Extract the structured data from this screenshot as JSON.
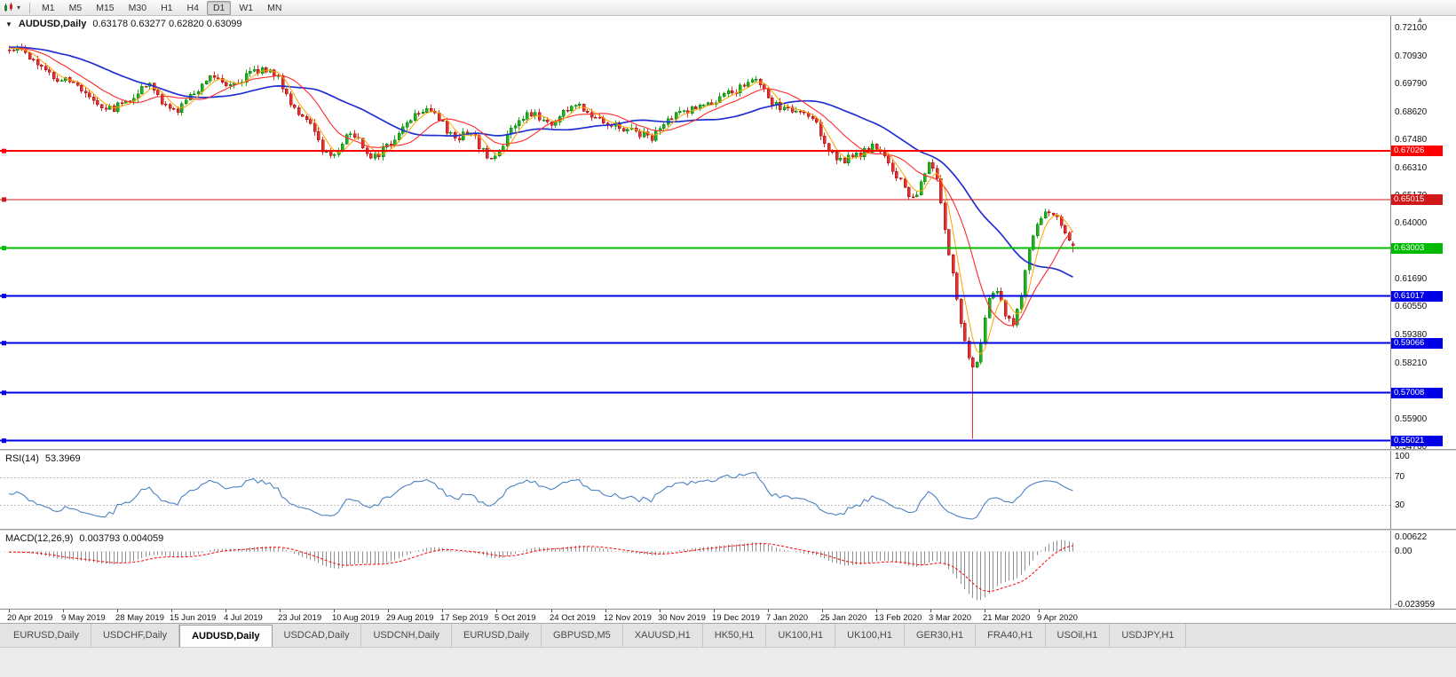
{
  "toolbar": {
    "timeframes": [
      "M1",
      "M5",
      "M15",
      "M30",
      "H1",
      "H4",
      "D1",
      "W1",
      "MN"
    ],
    "active_timeframe": "D1"
  },
  "chart": {
    "symbol_label": "AUDUSD,Daily",
    "ohlc": "0.63178 0.63277 0.62820 0.63099",
    "price_axis_labels": [
      "0.72100",
      "0.70930",
      "0.69790",
      "0.68620",
      "0.67480",
      "0.66310",
      "0.65170",
      "0.64000",
      "0.62860",
      "0.61690",
      "0.60550",
      "0.59380",
      "0.58210",
      "0.57040",
      "0.55900",
      "0.54760"
    ],
    "hlines": [
      {
        "price": 0.67026,
        "label": "0.67026",
        "color": "#FF0000",
        "width": 2
      },
      {
        "price": 0.65015,
        "label": "0.65015",
        "color": "#D01818",
        "width": 1.3
      },
      {
        "price": 0.63003,
        "label": "0.63003",
        "color": "#00BB00",
        "width": 2
      },
      {
        "price": 0.61017,
        "label": "0.61017",
        "color": "#0000E6",
        "width": 2
      },
      {
        "price": 0.59066,
        "label": "0.59066",
        "color": "#0000E6",
        "width": 2
      },
      {
        "price": 0.57008,
        "label": "0.57008",
        "color": "#0000E6",
        "width": 2
      },
      {
        "price": 0.55021,
        "label": "0.55021",
        "color": "#0000E6",
        "width": 2
      }
    ],
    "colors": {
      "up": "#1DB31D",
      "up_border": "#0E7A0E",
      "down": "#E53030",
      "down_border": "#9E0B0B",
      "ma_fast": "#FFA300",
      "ma_mid": "#FF2A2A",
      "ma_slow": "#2030D0"
    }
  },
  "rsi_panel": {
    "name": "RSI(14)",
    "value": "53.3969",
    "line_color": "#4B82C3",
    "axis_labels": [
      {
        "v": 100,
        "label": "100",
        "line": false
      },
      {
        "v": 70,
        "label": "70",
        "line": true
      },
      {
        "v": 30,
        "label": "30",
        "line": true
      }
    ]
  },
  "macd_panel": {
    "name": "MACD(12,26,9)",
    "values": "0.003793 0.004059",
    "hist_color": "#909090",
    "signal_color": "#FF0000",
    "axis_max_label": "0.00622",
    "axis_zero_label": "0.00",
    "axis_min_label": "-0.023959"
  },
  "date_axis": [
    "20 Apr 2019",
    "9 May 2019",
    "28 May 2019",
    "15 Jun 2019",
    "4 Jul 2019",
    "23 Jul 2019",
    "10 Aug 2019",
    "29 Aug 2019",
    "17 Sep 2019",
    "5 Oct 2019",
    "24 Oct 2019",
    "12 Nov 2019",
    "30 Nov 2019",
    "19 Dec 2019",
    "7 Jan 2020",
    "25 Jan 2020",
    "13 Feb 2020",
    "3 Mar 2020",
    "21 Mar 2020",
    "9 Apr 2020"
  ],
  "tabs": {
    "items": [
      "EURUSD,Daily",
      "USDCHF,Daily",
      "AUDUSD,Daily",
      "USDCAD,Daily",
      "USDCNH,Daily",
      "EURUSD,Daily",
      "GBPUSD,M5",
      "XAUUSD,H1",
      "HK50,H1",
      "UK100,H1",
      "UK100,H1",
      "GER30,H1",
      "FRA40,H1",
      "USOil,H1",
      "USDJPY,H1"
    ],
    "active_index": 2
  },
  "chart_data": {
    "type": "candlestick",
    "title": "AUDUSD,Daily",
    "last_candle": {
      "open": 0.63178,
      "high": 0.63277,
      "low": 0.6282,
      "close": 0.63099
    },
    "price_axis_range": [
      0.5476,
      0.721
    ],
    "close_path": [
      0.7135,
      0.709,
      0.702,
      0.699,
      0.6935,
      0.688,
      0.6925,
      0.697,
      0.687,
      0.6925,
      0.7015,
      0.6985,
      0.702,
      0.704,
      0.691,
      0.68,
      0.6685,
      0.6775,
      0.669,
      0.6735,
      0.6845,
      0.688,
      0.6765,
      0.677,
      0.667,
      0.679,
      0.6855,
      0.682,
      0.689,
      0.686,
      0.6815,
      0.679,
      0.6765,
      0.684,
      0.688,
      0.69,
      0.6945,
      0.7,
      0.69,
      0.687,
      0.683,
      0.669,
      0.667,
      0.6715,
      0.6625,
      0.6515,
      0.664,
      0.6185,
      0.58,
      0.613,
      0.5995,
      0.6355,
      0.6445,
      0.631
    ],
    "crash_low": 0.551,
    "indicators": {
      "moving_averages": [
        {
          "period": 5,
          "color": "#FFA300"
        },
        {
          "period": 13,
          "color": "#FF2A2A"
        },
        {
          "period": 34,
          "color": "#2030D0"
        }
      ],
      "rsi": {
        "period": 14,
        "last": 53.3969,
        "levels": [
          30,
          70
        ]
      },
      "macd": {
        "fast": 12,
        "slow": 26,
        "signal": 9,
        "last": 0.003793,
        "signal_last": 0.004059,
        "range": [
          -0.023959,
          0.00622
        ]
      }
    }
  }
}
